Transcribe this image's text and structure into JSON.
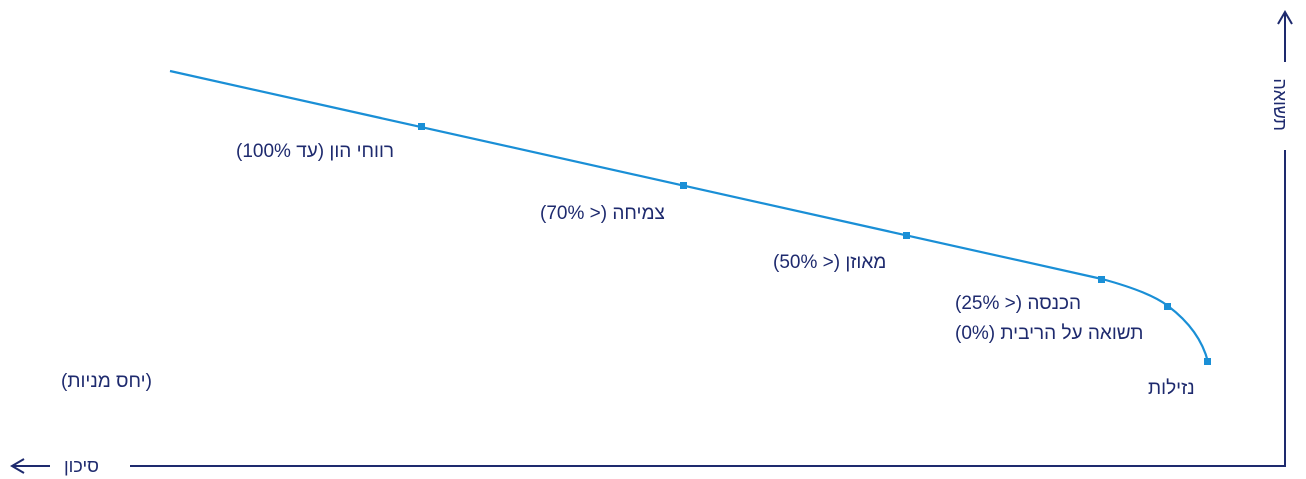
{
  "colors": {
    "curve": "#1a8fd6",
    "axis": "#1e2a6e",
    "text": "#1e2a6e"
  },
  "axes": {
    "x_label": "סיכון",
    "y_label": "תשואה"
  },
  "note": "(יחס מניות)",
  "points": [
    {
      "label": "רווחי הון (עד 100%)"
    },
    {
      "label": "צמיחה (< 70%)"
    },
    {
      "label": "מאוזן (< 50%)"
    },
    {
      "label": "הכנסה (< 25%)"
    },
    {
      "label": "תשואה על הריבית (0%)"
    },
    {
      "label": "נזילות"
    }
  ]
}
